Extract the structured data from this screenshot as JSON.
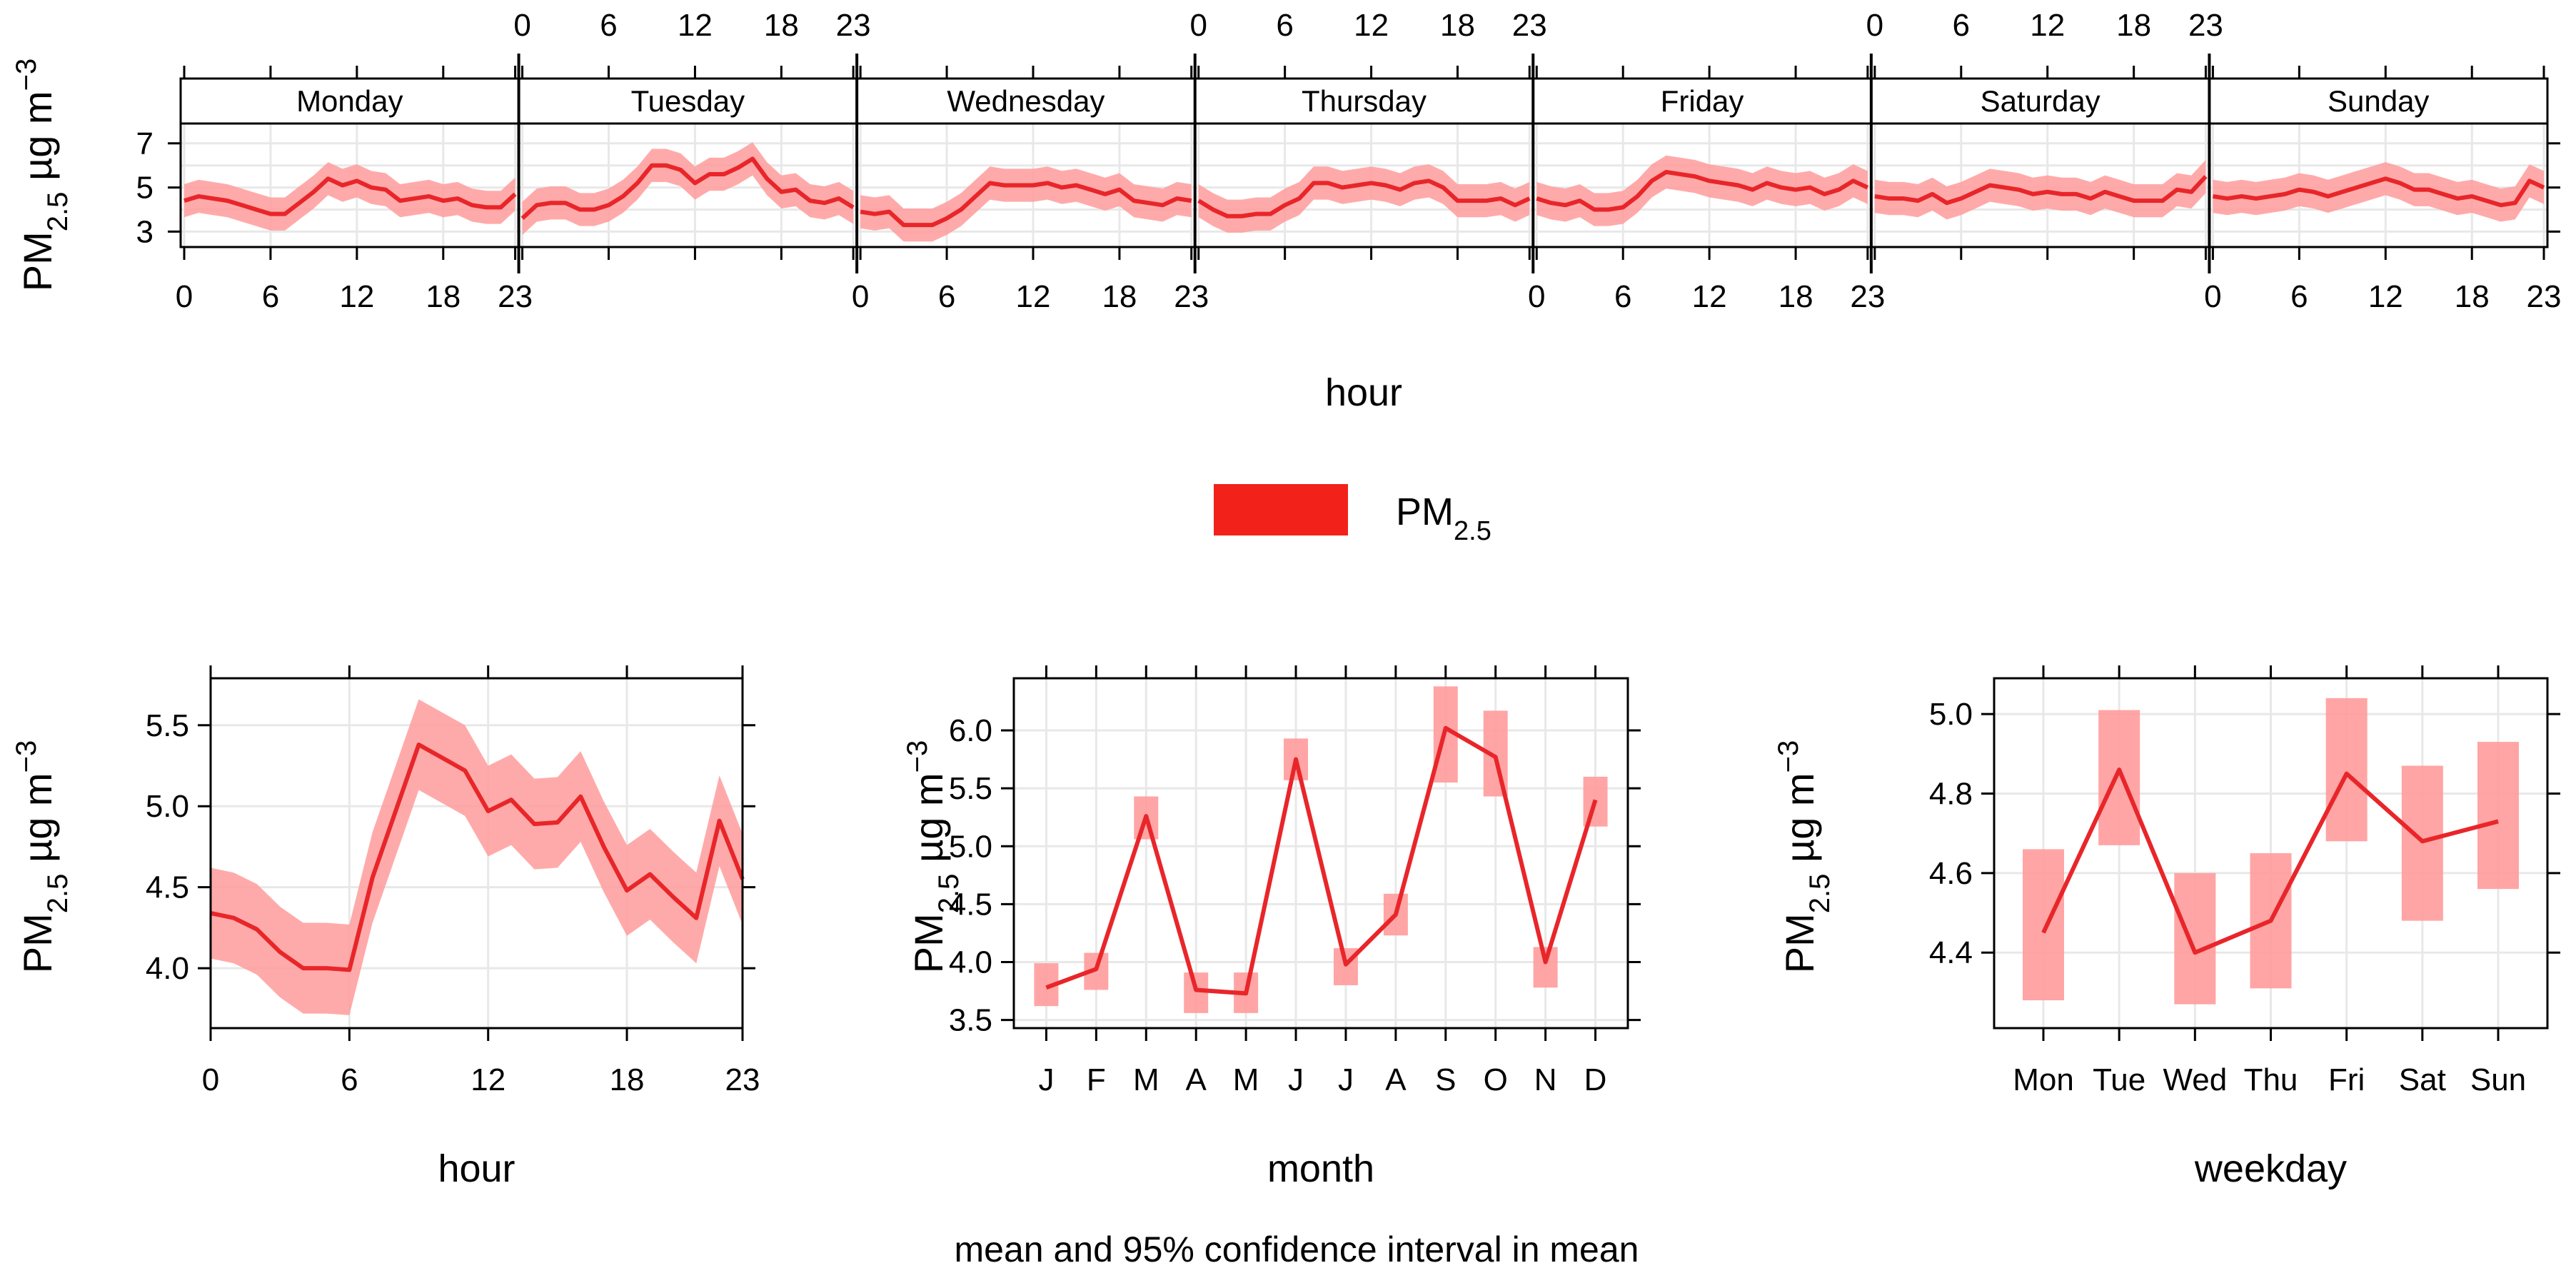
{
  "figure": {
    "bottom_title": "mean and 95% confidence interval in mean",
    "legend_label": "PM",
    "legend_sub": "2.5",
    "ylab": {
      "main": "PM",
      "sub": "2.5",
      "unit": " µg m",
      "exp": "−3"
    }
  },
  "colors": {
    "line": "#e8262a",
    "band": "#ff9b9b",
    "legend_fill": "#f2221a"
  },
  "chart_data": [
    {
      "id": "weekly",
      "type": "line",
      "xlabel": "hour",
      "ylabel": "PM2.5 µg m−3",
      "days": [
        "Monday",
        "Tuesday",
        "Wednesday",
        "Thursday",
        "Friday",
        "Saturday",
        "Sunday"
      ],
      "x_ticks": [
        "0",
        "6",
        "12",
        "18",
        "23"
      ],
      "ylim": [
        2.3,
        7.9
      ],
      "y_ticks": [
        3,
        5,
        7
      ],
      "ci_halfwidth": 0.75,
      "series": [
        {
          "name": "PM2.5",
          "day": "Monday",
          "values": [
            4.4,
            4.6,
            4.5,
            4.4,
            4.2,
            4.0,
            3.8,
            3.8,
            4.3,
            4.8,
            5.4,
            5.1,
            5.3,
            5.0,
            4.9,
            4.4,
            4.5,
            4.6,
            4.4,
            4.5,
            4.2,
            4.1,
            4.1,
            4.7
          ]
        },
        {
          "name": "PM2.5",
          "day": "Tuesday",
          "values": [
            3.6,
            4.2,
            4.3,
            4.3,
            4.0,
            4.0,
            4.2,
            4.6,
            5.2,
            6.0,
            6.0,
            5.8,
            5.2,
            5.6,
            5.6,
            5.9,
            6.3,
            5.4,
            4.8,
            4.9,
            4.4,
            4.3,
            4.5,
            4.1
          ]
        },
        {
          "name": "PM2.5",
          "day": "Wednesday",
          "values": [
            3.9,
            3.8,
            3.9,
            3.3,
            3.3,
            3.3,
            3.6,
            4.0,
            4.6,
            5.2,
            5.1,
            5.1,
            5.1,
            5.2,
            5.0,
            5.1,
            4.9,
            4.7,
            4.9,
            4.4,
            4.3,
            4.2,
            4.5,
            4.4
          ]
        },
        {
          "name": "PM2.5",
          "day": "Thursday",
          "values": [
            4.4,
            4.0,
            3.7,
            3.7,
            3.8,
            3.8,
            4.2,
            4.5,
            5.2,
            5.2,
            5.0,
            5.1,
            5.2,
            5.1,
            4.9,
            5.2,
            5.3,
            5.0,
            4.4,
            4.4,
            4.4,
            4.5,
            4.2,
            4.5
          ]
        },
        {
          "name": "PM2.5",
          "day": "Friday",
          "values": [
            4.5,
            4.3,
            4.2,
            4.4,
            4.0,
            4.0,
            4.1,
            4.6,
            5.3,
            5.7,
            5.6,
            5.5,
            5.3,
            5.2,
            5.1,
            4.9,
            5.2,
            5.0,
            4.9,
            5.0,
            4.7,
            4.9,
            5.3,
            5.0
          ]
        },
        {
          "name": "PM2.5",
          "day": "Saturday",
          "values": [
            4.6,
            4.5,
            4.5,
            4.4,
            4.7,
            4.3,
            4.5,
            4.8,
            5.1,
            5.0,
            4.9,
            4.7,
            4.8,
            4.7,
            4.7,
            4.5,
            4.8,
            4.6,
            4.4,
            4.4,
            4.4,
            4.9,
            4.8,
            5.5
          ]
        },
        {
          "name": "PM2.5",
          "day": "Sunday",
          "values": [
            4.6,
            4.5,
            4.6,
            4.5,
            4.6,
            4.7,
            4.9,
            4.8,
            4.6,
            4.8,
            5.0,
            5.2,
            5.4,
            5.2,
            4.9,
            4.9,
            4.7,
            4.5,
            4.6,
            4.4,
            4.2,
            4.3,
            5.3,
            5.0
          ]
        }
      ]
    },
    {
      "id": "hour",
      "type": "line",
      "xlabel": "hour",
      "ylabel": "PM2.5 µg m−3",
      "x": [
        0,
        1,
        2,
        3,
        4,
        5,
        6,
        7,
        8,
        9,
        10,
        11,
        12,
        13,
        14,
        15,
        16,
        17,
        18,
        19,
        20,
        21,
        22,
        23
      ],
      "values": [
        4.34,
        4.31,
        4.24,
        4.1,
        4.0,
        4.0,
        3.99,
        4.56,
        4.97,
        5.38,
        5.3,
        5.22,
        4.97,
        5.04,
        4.89,
        4.9,
        5.06,
        4.75,
        4.48,
        4.58,
        4.44,
        4.31,
        4.91,
        4.55
      ],
      "ci_halfwidth": 0.28,
      "x_ticks": [
        "0",
        "6",
        "12",
        "18",
        "23"
      ],
      "y_ticks": [
        "4.0",
        "4.5",
        "5.0",
        "5.5"
      ],
      "ylim": [
        3.63,
        5.79
      ],
      "xlim": [
        0,
        23
      ]
    },
    {
      "id": "month",
      "type": "line",
      "xlabel": "month",
      "ylabel": "PM2.5 µg m−3",
      "categories": [
        "J",
        "F",
        "M",
        "A",
        "M",
        "J",
        "J",
        "A",
        "S",
        "O",
        "N",
        "D"
      ],
      "values": [
        3.78,
        3.94,
        5.26,
        3.76,
        3.73,
        5.75,
        3.98,
        4.41,
        6.02,
        5.77,
        4.0,
        5.4
      ],
      "ci_low": [
        3.62,
        3.76,
        5.06,
        3.56,
        3.56,
        5.57,
        3.8,
        4.23,
        5.55,
        5.43,
        3.78,
        5.17
      ],
      "ci_high": [
        3.99,
        4.08,
        5.43,
        3.91,
        3.91,
        5.93,
        4.12,
        4.59,
        6.38,
        6.17,
        4.13,
        5.6
      ],
      "y_ticks": [
        "3.5",
        "4.0",
        "4.5",
        "5.0",
        "5.5",
        "6.0"
      ],
      "ylim": [
        3.43,
        6.45
      ]
    },
    {
      "id": "weekday",
      "type": "line",
      "xlabel": "weekday",
      "ylabel": "PM2.5 µg m−3",
      "categories": [
        "Mon",
        "Tue",
        "Wed",
        "Thu",
        "Fri",
        "Sat",
        "Sun"
      ],
      "values": [
        4.45,
        4.86,
        4.4,
        4.48,
        4.85,
        4.68,
        4.73
      ],
      "ci_low": [
        4.28,
        4.67,
        4.27,
        4.31,
        4.68,
        4.48,
        4.56
      ],
      "ci_high": [
        4.66,
        5.01,
        4.6,
        4.65,
        5.04,
        4.87,
        4.93
      ],
      "y_ticks": [
        "4.4",
        "4.6",
        "4.8",
        "5.0"
      ],
      "ylim": [
        4.21,
        5.09
      ]
    }
  ]
}
